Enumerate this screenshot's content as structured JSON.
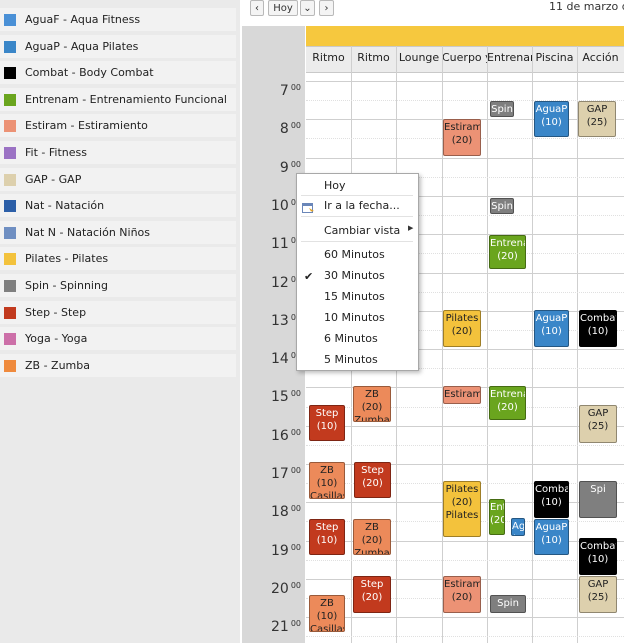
{
  "legend": [
    {
      "label": "AguaF - Aqua Fitness",
      "color": "#4a90d6"
    },
    {
      "label": "AguaP - Aqua Pilates",
      "color": "#3a86c8"
    },
    {
      "label": "Combat - Body Combat",
      "color": "#000000"
    },
    {
      "label": "Entrenam - Entrenamiento Funcional",
      "color": "#6aa51e"
    },
    {
      "label": "Estiram - Estiramiento",
      "color": "#ec9275"
    },
    {
      "label": "Fit - Fitness",
      "color": "#9b72c4"
    },
    {
      "label": "GAP - GAP",
      "color": "#ddd0ad"
    },
    {
      "label": "Nat - Natación",
      "color": "#2c5fa8"
    },
    {
      "label": "Nat N - Natación Niños",
      "color": "#6f8fc2"
    },
    {
      "label": "Pilates - Pilates",
      "color": "#f3c23c"
    },
    {
      "label": "Spin - Spinning",
      "color": "#7f7f7f"
    },
    {
      "label": "Step - Step",
      "color": "#c23a1e"
    },
    {
      "label": "Yoga - Yoga",
      "color": "#cc6fa8"
    },
    {
      "label": "ZB - Zumba",
      "color": "#ef8a3d"
    }
  ],
  "toolbar": {
    "prev": "‹",
    "today": "Hoy",
    "dropdown": "⌄",
    "next": "›",
    "date": "11 de marzo de"
  },
  "columns": [
    "Ritmo",
    "Ritmo",
    "Lounge",
    "Cuerpo y",
    "Entrenar",
    "Piscina",
    "Acción"
  ],
  "hours": [
    "7",
    "8",
    "9",
    "10",
    "11",
    "12",
    "13",
    "14",
    "15",
    "16",
    "17",
    "18",
    "19",
    "20",
    "21"
  ],
  "minutes": "00",
  "events": [
    {
      "t": "Spin",
      "c": "#7f7f7f",
      "fg": "light"
    },
    {
      "t": "AguaP (10)",
      "c": "#3a86c8",
      "fg": "light"
    },
    {
      "t": "GAP (25)",
      "c": "#ddd0ad",
      "fg": "dark"
    },
    {
      "t": "Estiram (20)",
      "c": "#ec9275",
      "fg": "dark"
    },
    {
      "t": "Spin",
      "c": "#7f7f7f",
      "fg": "light"
    },
    {
      "t": "Entrena (20)",
      "c": "#6aa51e",
      "fg": "light"
    },
    {
      "t": "Pilates (20)",
      "c": "#f3c23c",
      "fg": "dark"
    },
    {
      "t": "AguaP (10)",
      "c": "#3a86c8",
      "fg": "light"
    },
    {
      "t": "Combat (10)",
      "c": "#000000",
      "fg": "light"
    },
    {
      "t": "ZB (20) Zumba",
      "c": "#ec8a5a",
      "fg": "dark"
    },
    {
      "t": "Estiram",
      "c": "#ec9275",
      "fg": "dark"
    },
    {
      "t": "Entrena (20)",
      "c": "#6aa51e",
      "fg": "light"
    },
    {
      "t": "Step (10)",
      "c": "#c23a1e",
      "fg": "light"
    },
    {
      "t": "GAP (25)",
      "c": "#ddd0ad",
      "fg": "dark"
    },
    {
      "t": "ZB (10) Casillas",
      "c": "#ec8a5a",
      "fg": "dark"
    },
    {
      "t": "Step (20)",
      "c": "#c23a1e",
      "fg": "light"
    },
    {
      "t": "Pilates (20) Pilates",
      "c": "#f3c23c",
      "fg": "dark"
    },
    {
      "t": "Ent (20)",
      "c": "#6aa51e",
      "fg": "light"
    },
    {
      "t": "AguaP (10)",
      "c": "#3a86c8",
      "fg": "light"
    },
    {
      "t": "Combat (10)",
      "c": "#000000",
      "fg": "light"
    },
    {
      "t": "Spi",
      "c": "#7f7f7f",
      "fg": "light"
    },
    {
      "t": "Step (10)",
      "c": "#c23a1e",
      "fg": "light"
    },
    {
      "t": "ZB (20) Zumba",
      "c": "#ec8a5a",
      "fg": "dark"
    },
    {
      "t": "AguaP (10)",
      "c": "#3a86c8",
      "fg": "light"
    },
    {
      "t": "Combat (10)",
      "c": "#000000",
      "fg": "light"
    },
    {
      "t": "Step (20)",
      "c": "#c23a1e",
      "fg": "light"
    },
    {
      "t": "Estiram (20)",
      "c": "#ec9275",
      "fg": "dark"
    },
    {
      "t": "GAP (25)",
      "c": "#ddd0ad",
      "fg": "dark"
    },
    {
      "t": "ZB (10) Casillas",
      "c": "#ec8a5a",
      "fg": "dark"
    },
    {
      "t": "Spin",
      "c": "#7f7f7f",
      "fg": "light"
    }
  ],
  "context_menu": {
    "today": "Hoy",
    "go_to_date": "Ir a la fecha...",
    "change_view": "Cambiar vista",
    "opt60": "60 Minutos",
    "opt30": "30 Minutos",
    "opt15": "15 Minutos",
    "opt10": "10 Minutos",
    "opt6": "6 Minutos",
    "opt5": "5 Minutos",
    "selected": "30 Minutos",
    "check": "✔",
    "submenu_arrow": "▶"
  }
}
